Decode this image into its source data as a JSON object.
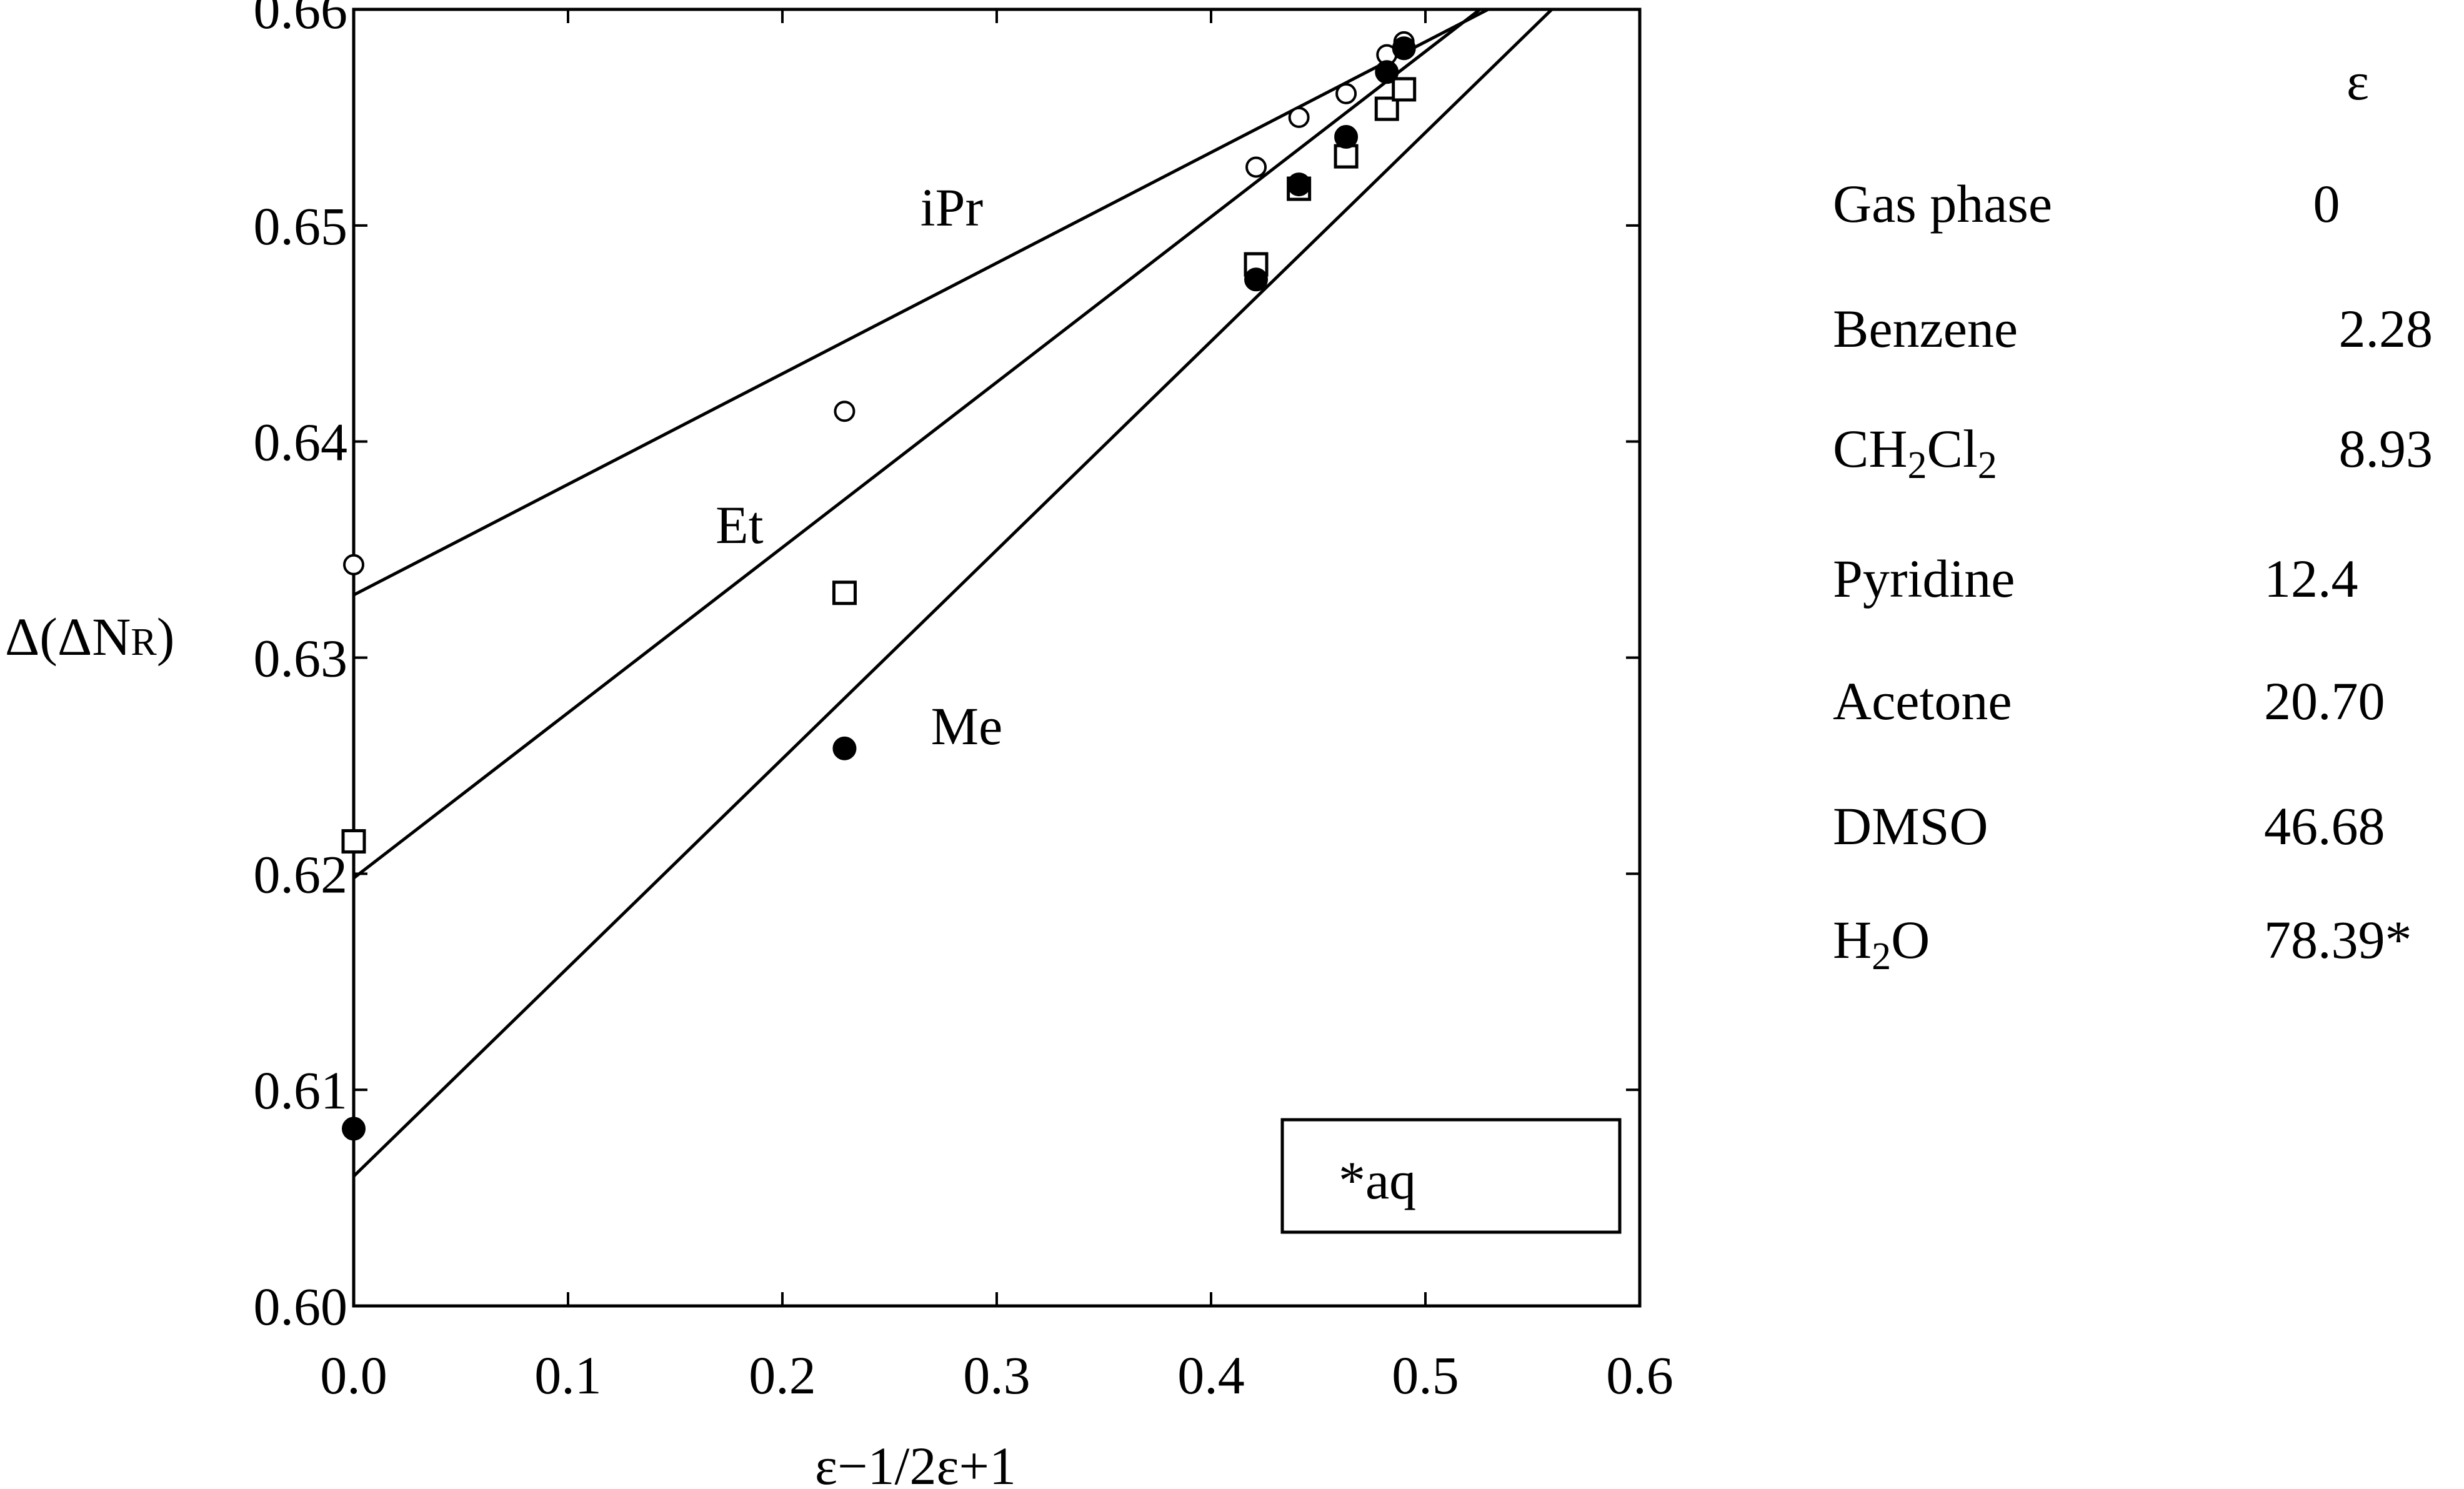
{
  "chart_data": {
    "type": "scatter",
    "xlabel": "ε−1/2ε+1",
    "ylabel": "Δ(ΔN",
    "ylabel_sub": "R",
    "ylabel_close": ")",
    "xlim": [
      0.0,
      0.6
    ],
    "ylim": [
      0.6,
      0.66
    ],
    "xticks": [
      "0.0",
      "0.1",
      "0.2",
      "0.3",
      "0.4",
      "0.5",
      "0.6"
    ],
    "yticks": [
      "0.60",
      "0.61",
      "0.62",
      "0.63",
      "0.64",
      "0.65",
      "0.66"
    ],
    "grid": false,
    "series": [
      {
        "name": "iPr",
        "marker": "open-circle",
        "x": [
          0.0,
          0.229,
          0.421,
          0.441,
          0.463,
          0.482,
          0.49
        ],
        "y": [
          0.6343,
          0.6414,
          0.6527,
          0.655,
          0.6561,
          0.6579,
          0.6585
        ],
        "fit": {
          "intercept": 0.6329,
          "slope": 0.0512
        }
      },
      {
        "name": "Et",
        "marker": "open-square",
        "x": [
          0.0,
          0.229,
          0.421,
          0.441,
          0.463,
          0.482,
          0.49
        ],
        "y": [
          0.6215,
          0.633,
          0.6482,
          0.6517,
          0.6532,
          0.6554,
          0.6563
        ],
        "fit": {
          "intercept": 0.6198,
          "slope": 0.0765
        }
      },
      {
        "name": "Me",
        "marker": "filled-circle",
        "x": [
          0.0,
          0.229,
          0.421,
          0.441,
          0.463,
          0.482,
          0.49
        ],
        "y": [
          0.6082,
          0.6258,
          0.6475,
          0.6519,
          0.6541,
          0.6571,
          0.6582
        ],
        "fit": {
          "intercept": 0.606,
          "slope": 0.0966
        }
      }
    ],
    "line_label_positions": [
      {
        "text": "iPr",
        "x": 0.279,
        "y": 0.65
      },
      {
        "text": "Et",
        "x": 0.18,
        "y": 0.6353
      },
      {
        "text": "Me",
        "x": 0.286,
        "y": 0.626
      }
    ],
    "annotation": "*aq"
  },
  "solvent_table": {
    "header": "ε",
    "rows": [
      {
        "solvent": "Gas phase",
        "epsilon": "0"
      },
      {
        "solvent": "Benzene",
        "epsilon": "2.28"
      },
      {
        "solvent_parts": [
          "CH",
          "2",
          "Cl",
          "2"
        ],
        "epsilon": "8.93"
      },
      {
        "solvent": "Pyridine",
        "epsilon": "12.4"
      },
      {
        "solvent": "Acetone",
        "epsilon": "20.70"
      },
      {
        "solvent": "DMSO",
        "epsilon": "46.68"
      },
      {
        "solvent_parts": [
          "H",
          "2",
          "O"
        ],
        "epsilon": "78.39*"
      }
    ]
  }
}
